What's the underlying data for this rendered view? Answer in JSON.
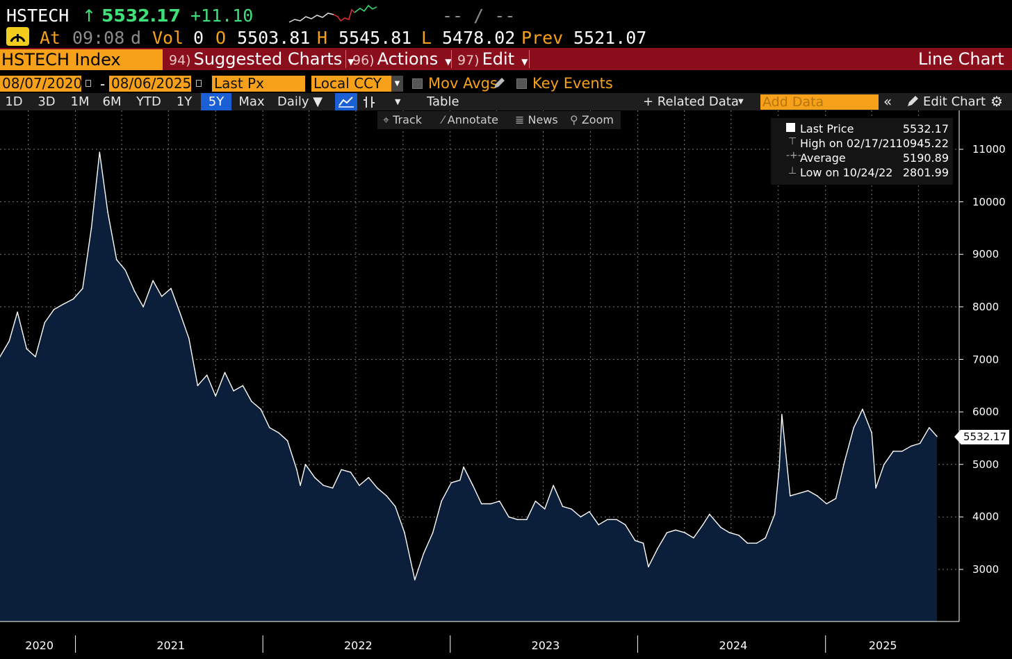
{
  "header": {
    "ticker": "HSTECH",
    "arrow": "↑",
    "last": "5532.17",
    "change": "+11.10",
    "bid_ask": "-- / --",
    "at_label": "At",
    "time": "09:08",
    "day_flag": "d",
    "vol_label": "Vol",
    "vol": "0",
    "open_label": "O",
    "open": "5503.81",
    "high_label": "H",
    "high": "5545.81",
    "low_label": "L",
    "low": "5478.02",
    "prev_label": "Prev",
    "prev": "5521.07"
  },
  "toolbar": {
    "security": "HSTECH Index",
    "suggested_num": "94)",
    "suggested_label": "Suggested Charts",
    "actions_num": "96)",
    "actions_label": "Actions",
    "edit_num": "97)",
    "edit_label": "Edit",
    "chart_kind": "Line Chart"
  },
  "controls": {
    "start_date": "08/07/2020",
    "dash": "-",
    "end_date": "08/06/2025",
    "field": "Last Px",
    "currency": "Local CCY",
    "mov_avgs": "Mov Avgs",
    "key_events": "Key Events"
  },
  "ranges": {
    "items": [
      "1D",
      "3D",
      "1M",
      "6M",
      "YTD",
      "1Y",
      "5Y",
      "Max"
    ],
    "selected": "5Y",
    "period": "Daily ▼",
    "table": "Table",
    "related": "+ Related Data",
    "add_data_placeholder": "Add Data",
    "edit_chart": "Edit Chart"
  },
  "subtools": {
    "track": "Track",
    "annotate": "Annotate",
    "news": "News",
    "zoom": "Zoom"
  },
  "legend": {
    "last_label": "Last Price",
    "last_value": "5532.17",
    "high_label": "High on 02/17/21",
    "high_value": "10945.22",
    "avg_label": "Average",
    "avg_value": "5190.89",
    "low_label": "Low on 10/24/22",
    "low_value": "2801.99"
  },
  "colors": {
    "background": "#000000",
    "area_fill": "#0b1e3a",
    "line": "#ffffff",
    "accent_amber": "#f7a11a",
    "toolbar_red": "#8b0e1d",
    "selected_blue": "#1a5fd3",
    "up_green": "#3ee07a"
  },
  "chart_data": {
    "type": "area",
    "title": "",
    "xlabel": "",
    "ylabel": "",
    "ylim": [
      2000,
      11500
    ],
    "yticks": [
      3000,
      4000,
      5000,
      6000,
      7000,
      8000,
      9000,
      10000,
      11000
    ],
    "ytick_labels": [
      "3000",
      "4000",
      "5000",
      "6000",
      "7000",
      "8000",
      "9000",
      "10000",
      "11000"
    ],
    "xlim": [
      "2020-08-07",
      "2025-08-06"
    ],
    "year_labels": [
      "2020",
      "2021",
      "2022",
      "2023",
      "2024",
      "2025"
    ],
    "grid": true,
    "last_value_label": "5532.17",
    "series": [
      {
        "x": [
          "2020-08-07",
          "2020-08-25",
          "2020-09-10",
          "2020-09-28",
          "2020-10-15",
          "2020-11-02",
          "2020-11-20",
          "2020-12-08",
          "2020-12-28",
          "2021-01-15",
          "2021-02-01",
          "2021-02-17",
          "2021-03-05",
          "2021-03-22",
          "2021-04-08",
          "2021-04-26",
          "2021-05-13",
          "2021-06-01",
          "2021-06-18",
          "2021-07-06",
          "2021-07-23",
          "2021-08-10",
          "2021-08-27",
          "2021-09-14",
          "2021-10-01",
          "2021-10-19",
          "2021-11-05",
          "2021-11-23",
          "2021-12-10",
          "2021-12-28",
          "2022-01-14",
          "2022-02-01",
          "2022-02-18",
          "2022-03-08",
          "2022-03-15",
          "2022-03-25",
          "2022-04-12",
          "2022-04-29",
          "2022-05-17",
          "2022-06-03",
          "2022-06-21",
          "2022-07-08",
          "2022-07-26",
          "2022-08-12",
          "2022-08-30",
          "2022-09-16",
          "2022-10-04",
          "2022-10-24",
          "2022-11-10",
          "2022-11-28",
          "2022-12-15",
          "2023-01-03",
          "2023-01-20",
          "2023-01-27",
          "2023-02-14",
          "2023-03-03",
          "2023-03-21",
          "2023-04-07",
          "2023-04-25",
          "2023-05-12",
          "2023-05-30",
          "2023-06-16",
          "2023-07-04",
          "2023-07-21",
          "2023-08-08",
          "2023-08-25",
          "2023-09-12",
          "2023-09-29",
          "2023-10-17",
          "2023-11-03",
          "2023-11-21",
          "2023-12-08",
          "2023-12-27",
          "2024-01-12",
          "2024-01-22",
          "2024-02-09",
          "2024-02-27",
          "2024-03-15",
          "2024-04-02",
          "2024-04-19",
          "2024-05-07",
          "2024-05-20",
          "2024-06-11",
          "2024-06-28",
          "2024-07-16",
          "2024-08-02",
          "2024-08-20",
          "2024-09-06",
          "2024-09-24",
          "2024-10-03",
          "2024-10-08",
          "2024-10-24",
          "2024-11-11",
          "2024-11-28",
          "2024-12-16",
          "2025-01-03",
          "2025-01-21",
          "2025-02-07",
          "2025-02-25",
          "2025-03-07",
          "2025-03-14",
          "2025-04-01",
          "2025-04-09",
          "2025-04-25",
          "2025-05-13",
          "2025-05-30",
          "2025-06-17",
          "2025-07-04",
          "2025-07-22",
          "2025-08-06"
        ],
        "y": [
          7050,
          7350,
          7900,
          7200,
          7050,
          7700,
          7950,
          8050,
          8150,
          8350,
          9500,
          10945,
          9800,
          8900,
          8700,
          8300,
          8000,
          8500,
          8200,
          8350,
          7900,
          7400,
          6500,
          6700,
          6300,
          6750,
          6400,
          6500,
          6200,
          6050,
          5700,
          5600,
          5450,
          4900,
          4600,
          5000,
          4750,
          4600,
          4550,
          4900,
          4850,
          4600,
          4750,
          4550,
          4400,
          4200,
          3700,
          2802,
          3300,
          3700,
          4300,
          4650,
          4700,
          4950,
          4600,
          4250,
          4250,
          4300,
          4000,
          3950,
          3950,
          4300,
          4150,
          4600,
          4200,
          4150,
          4000,
          4100,
          3850,
          3950,
          3950,
          3850,
          3550,
          3500,
          3050,
          3400,
          3700,
          3750,
          3700,
          3600,
          3850,
          4050,
          3800,
          3700,
          3650,
          3500,
          3500,
          3600,
          4050,
          4950,
          5950,
          4400,
          4450,
          4500,
          4400,
          4250,
          4350,
          5050,
          5700,
          5900,
          6050,
          5600,
          4550,
          5000,
          5250,
          5250,
          5350,
          5400,
          5700,
          5532.17
        ]
      }
    ]
  }
}
